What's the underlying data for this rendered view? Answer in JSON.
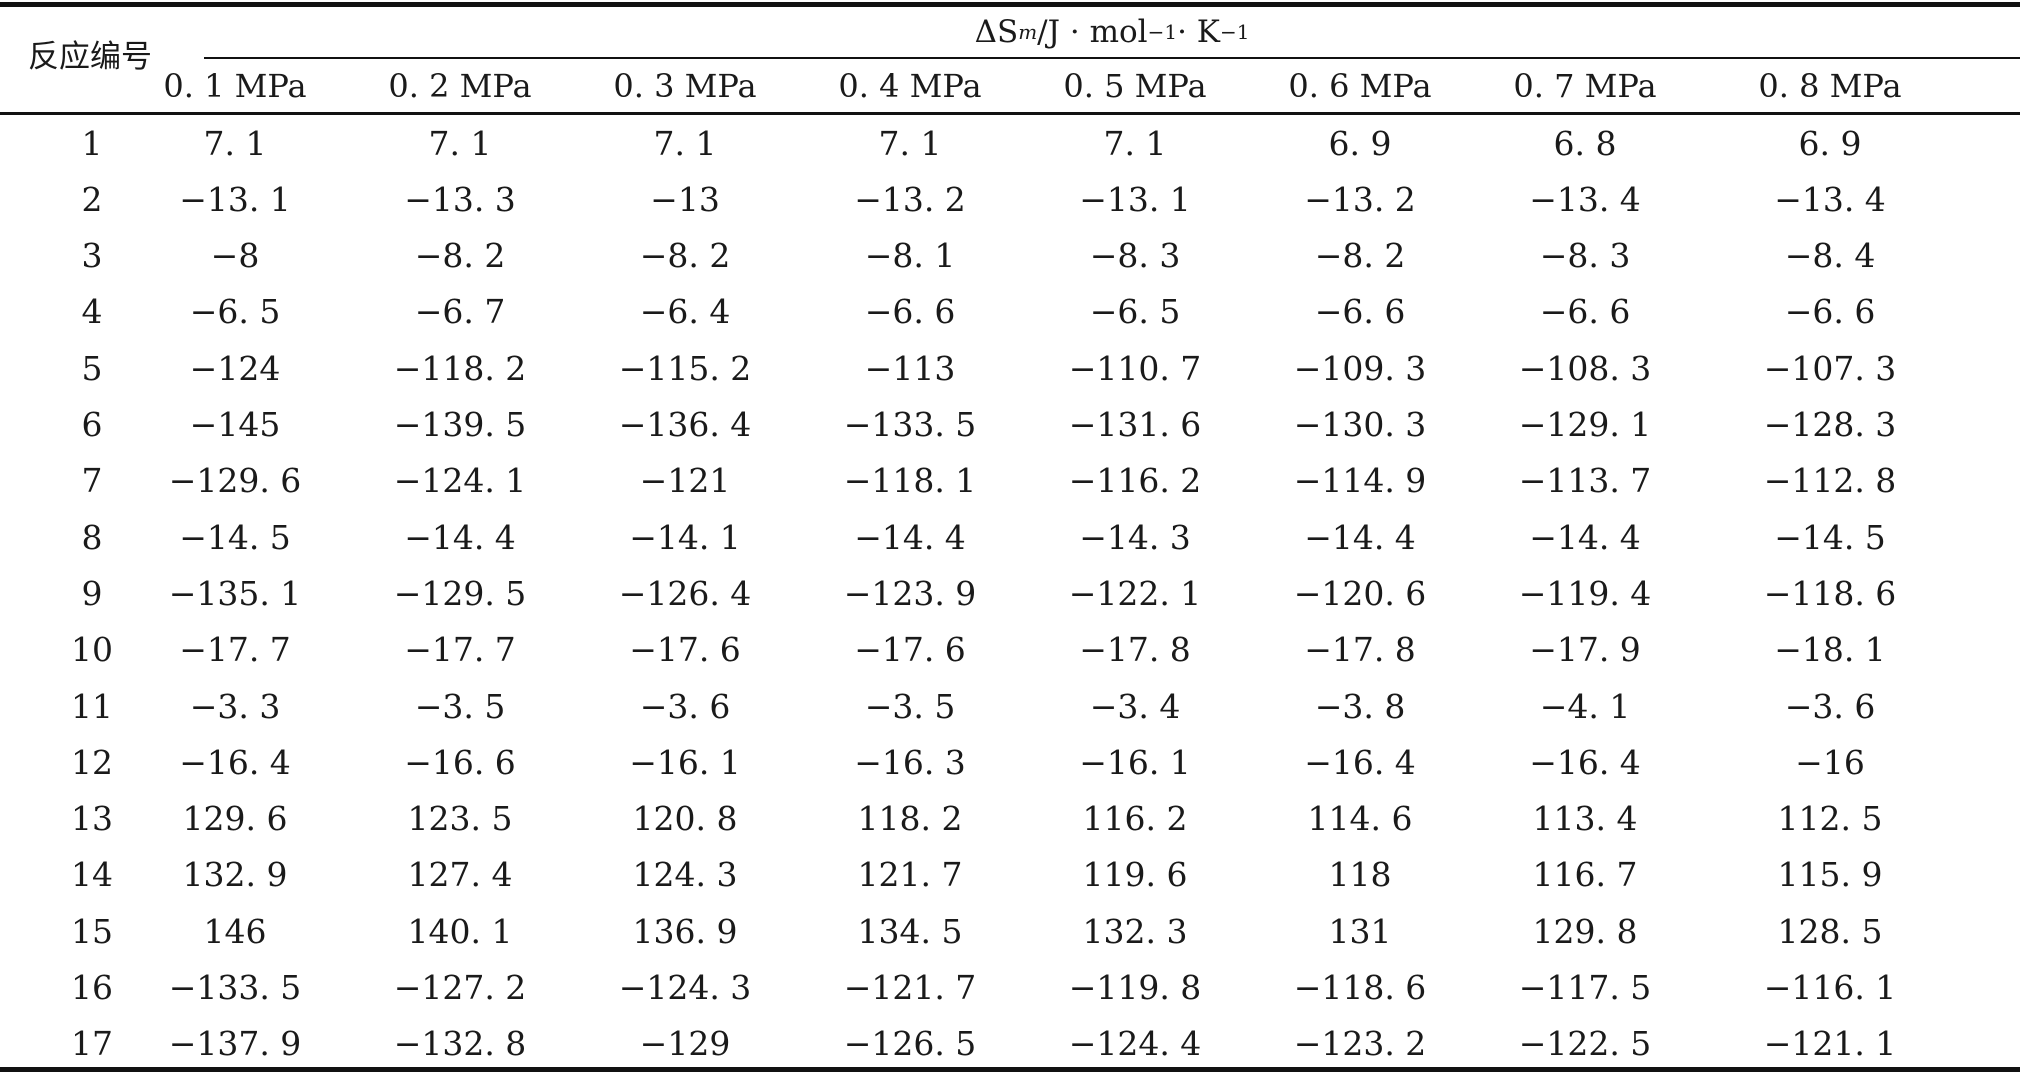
{
  "table": {
    "row_header": "反应编号",
    "group_header": {
      "symbol": "ΔS",
      "subscript": "m",
      "unit_prefix": "/J · mol",
      "exp1": "−1",
      "unit_mid": " · K",
      "exp2": "−1"
    },
    "columns": [
      "0. 1 MPa",
      "0. 2 MPa",
      "0. 3 MPa",
      "0. 4 MPa",
      "0. 5 MPa",
      "0. 6 MPa",
      "0. 7 MPa",
      "0. 8 MPa"
    ],
    "rows": [
      {
        "id": "1",
        "values": [
          "7. 1",
          "7. 1",
          "7. 1",
          "7. 1",
          "7. 1",
          "6. 9",
          "6. 8",
          "6. 9"
        ]
      },
      {
        "id": "2",
        "values": [
          "−13. 1",
          "−13. 3",
          "−13",
          "−13. 2",
          "−13. 1",
          "−13. 2",
          "−13. 4",
          "−13. 4"
        ]
      },
      {
        "id": "3",
        "values": [
          "−8",
          "−8. 2",
          "−8. 2",
          "−8. 1",
          "−8. 3",
          "−8. 2",
          "−8. 3",
          "−8. 4"
        ]
      },
      {
        "id": "4",
        "values": [
          "−6. 5",
          "−6. 7",
          "−6. 4",
          "−6. 6",
          "−6. 5",
          "−6. 6",
          "−6. 6",
          "−6. 6"
        ]
      },
      {
        "id": "5",
        "values": [
          "−124",
          "−118. 2",
          "−115. 2",
          "−113",
          "−110. 7",
          "−109. 3",
          "−108. 3",
          "−107. 3"
        ]
      },
      {
        "id": "6",
        "values": [
          "−145",
          "−139. 5",
          "−136. 4",
          "−133. 5",
          "−131. 6",
          "−130. 3",
          "−129. 1",
          "−128. 3"
        ]
      },
      {
        "id": "7",
        "values": [
          "−129. 6",
          "−124. 1",
          "−121",
          "−118. 1",
          "−116. 2",
          "−114. 9",
          "−113. 7",
          "−112. 8"
        ]
      },
      {
        "id": "8",
        "values": [
          "−14. 5",
          "−14. 4",
          "−14. 1",
          "−14. 4",
          "−14. 3",
          "−14. 4",
          "−14. 4",
          "−14. 5"
        ]
      },
      {
        "id": "9",
        "values": [
          "−135. 1",
          "−129. 5",
          "−126. 4",
          "−123. 9",
          "−122. 1",
          "−120. 6",
          "−119. 4",
          "−118. 6"
        ]
      },
      {
        "id": "10",
        "values": [
          "−17. 7",
          "−17. 7",
          "−17. 6",
          "−17. 6",
          "−17. 8",
          "−17. 8",
          "−17. 9",
          "−18. 1"
        ]
      },
      {
        "id": "11",
        "values": [
          "−3. 3",
          "−3. 5",
          "−3. 6",
          "−3. 5",
          "−3. 4",
          "−3. 8",
          "−4. 1",
          "−3. 6"
        ]
      },
      {
        "id": "12",
        "values": [
          "−16. 4",
          "−16. 6",
          "−16. 1",
          "−16. 3",
          "−16. 1",
          "−16. 4",
          "−16. 4",
          "−16"
        ]
      },
      {
        "id": "13",
        "values": [
          "129. 6",
          "123. 5",
          "120. 8",
          "118. 2",
          "116. 2",
          "114. 6",
          "113. 4",
          "112. 5"
        ]
      },
      {
        "id": "14",
        "values": [
          "132. 9",
          "127. 4",
          "124. 3",
          "121. 7",
          "119. 6",
          "118",
          "116. 7",
          "115. 9"
        ]
      },
      {
        "id": "15",
        "values": [
          "146",
          "140. 1",
          "136. 9",
          "134. 5",
          "132. 3",
          "131",
          "129. 8",
          "128. 5"
        ]
      },
      {
        "id": "16",
        "values": [
          "−133. 5",
          "−127. 2",
          "−124. 3",
          "−121. 7",
          "−119. 8",
          "−118. 6",
          "−117. 5",
          "−116. 1"
        ]
      },
      {
        "id": "17",
        "values": [
          "−137. 9",
          "−132. 8",
          "−129",
          "−126. 5",
          "−124. 4",
          "−123. 2",
          "−122. 5",
          "−121. 1"
        ]
      }
    ]
  }
}
